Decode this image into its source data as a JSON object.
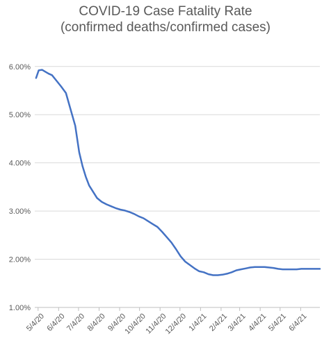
{
  "chart_data": {
    "type": "line",
    "title_lines": [
      "COVID-19 Case Fatality Rate",
      "(confirmed deaths/confirmed cases)"
    ],
    "y_tick_labels": [
      "1.00%",
      "2.00%",
      "3.00%",
      "4.00%",
      "5.00%",
      "6.00%"
    ],
    "y_ticks": [
      1.0,
      2.0,
      3.0,
      4.0,
      5.0,
      6.0
    ],
    "ylim": [
      1.0,
      6.4
    ],
    "x_tick_labels": [
      "5/4/20",
      "6/4/20",
      "7/4/20",
      "8/4/20",
      "9/4/20",
      "10/4/20",
      "11/4/20",
      "12/4/20",
      "1/4/21",
      "2/4/21",
      "3/4/21",
      "4/4/21",
      "5/4/21",
      "6/4/21"
    ],
    "x_ticks": [
      "2020-05-04",
      "2020-06-04",
      "2020-07-04",
      "2020-08-04",
      "2020-09-04",
      "2020-10-04",
      "2020-11-04",
      "2020-12-04",
      "2021-01-04",
      "2021-02-04",
      "2021-03-04",
      "2021-04-04",
      "2021-05-04",
      "2021-06-04"
    ],
    "xlim": [
      "2020-04-29",
      "2021-07-03"
    ],
    "grid": "horizontal",
    "legend": "none",
    "series": [
      {
        "color": "#4472c4",
        "x": [
          "2020-05-01",
          "2020-05-05",
          "2020-05-10",
          "2020-05-15",
          "2020-05-20",
          "2020-05-25",
          "2020-06-01",
          "2020-06-08",
          "2020-06-15",
          "2020-06-22",
          "2020-06-29",
          "2020-07-05",
          "2020-07-10",
          "2020-07-15",
          "2020-07-20",
          "2020-07-25",
          "2020-08-01",
          "2020-08-08",
          "2020-08-15",
          "2020-08-22",
          "2020-08-29",
          "2020-09-05",
          "2020-09-12",
          "2020-09-19",
          "2020-09-26",
          "2020-10-03",
          "2020-10-10",
          "2020-10-17",
          "2020-10-24",
          "2020-10-31",
          "2020-11-07",
          "2020-11-14",
          "2020-11-21",
          "2020-11-28",
          "2020-12-05",
          "2020-12-12",
          "2020-12-19",
          "2020-12-26",
          "2021-01-02",
          "2021-01-09",
          "2021-01-16",
          "2021-01-23",
          "2021-01-30",
          "2021-02-06",
          "2021-02-13",
          "2021-02-20",
          "2021-02-27",
          "2021-03-06",
          "2021-03-13",
          "2021-03-20",
          "2021-03-27",
          "2021-04-03",
          "2021-04-10",
          "2021-04-17",
          "2021-04-24",
          "2021-05-01",
          "2021-05-08",
          "2021-05-15",
          "2021-05-22",
          "2021-05-29",
          "2021-06-05",
          "2021-06-12",
          "2021-06-19",
          "2021-06-26",
          "2021-07-03"
        ],
        "values": [
          5.76,
          5.92,
          5.93,
          5.89,
          5.85,
          5.82,
          5.7,
          5.58,
          5.45,
          5.11,
          4.77,
          4.22,
          3.93,
          3.71,
          3.53,
          3.42,
          3.27,
          3.19,
          3.14,
          3.1,
          3.06,
          3.03,
          3.01,
          2.98,
          2.94,
          2.89,
          2.85,
          2.79,
          2.73,
          2.67,
          2.57,
          2.46,
          2.35,
          2.21,
          2.06,
          1.95,
          1.88,
          1.81,
          1.75,
          1.73,
          1.69,
          1.67,
          1.67,
          1.68,
          1.7,
          1.73,
          1.77,
          1.79,
          1.81,
          1.83,
          1.84,
          1.84,
          1.84,
          1.83,
          1.82,
          1.8,
          1.79,
          1.79,
          1.79,
          1.79,
          1.8,
          1.8,
          1.8,
          1.8,
          1.8
        ]
      }
    ]
  }
}
